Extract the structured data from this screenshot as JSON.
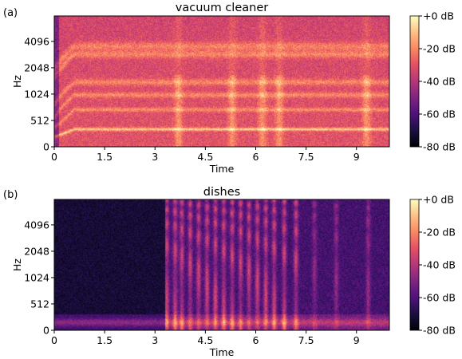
{
  "chart_data": [
    {
      "type": "heatmap",
      "panel_label": "(a)",
      "title": "vacuum cleaner",
      "xlabel": "Time",
      "ylabel": "Hz",
      "x_ticks": [
        "0",
        "1.5",
        "3",
        "4.5",
        "6",
        "7.5",
        "9"
      ],
      "x_tick_values": [
        0,
        1.5,
        3,
        4.5,
        6,
        7.5,
        9
      ],
      "xlim": [
        0,
        9.98
      ],
      "y_ticks": [
        "0",
        "512",
        "1024",
        "2048",
        "4096"
      ],
      "y_tick_values": [
        0,
        512,
        1024,
        2048,
        4096
      ],
      "y_scale": "symlog",
      "ylim": [
        0,
        8000
      ],
      "colorbar": {
        "ticks": [
          "+0 dB",
          "-20 dB",
          "-40 dB",
          "-60 dB",
          "-80 dB"
        ],
        "tick_values": [
          0,
          -20,
          -40,
          -60,
          -80
        ],
        "range": [
          -80,
          0
        ],
        "colormap": "magma"
      },
      "features": {
        "background_db": -30,
        "harmonic_bands_hz": [
          340,
          680,
          1000,
          1400,
          2900,
          3600
        ],
        "transient_bursts_s": [
          3.7,
          5.3,
          6.2,
          6.7,
          9.3
        ]
      }
    },
    {
      "type": "heatmap",
      "panel_label": "(b)",
      "title": "dishes",
      "xlabel": "Time",
      "ylabel": "Hz",
      "x_ticks": [
        "0",
        "1.5",
        "3",
        "4.5",
        "6",
        "7.5",
        "9"
      ],
      "x_tick_values": [
        0,
        1.5,
        3,
        4.5,
        6,
        7.5,
        9
      ],
      "xlim": [
        0,
        9.98
      ],
      "y_ticks": [
        "0",
        "512",
        "1024",
        "2048",
        "4096"
      ],
      "y_tick_values": [
        0,
        512,
        1024,
        2048,
        4096
      ],
      "y_scale": "symlog",
      "ylim": [
        0,
        8000
      ],
      "colorbar": {
        "ticks": [
          "+0 dB",
          "-20 dB",
          "-40 dB",
          "-60 dB",
          "-80 dB"
        ],
        "tick_values": [
          0,
          -20,
          -40,
          -60,
          -80
        ],
        "range": [
          -80,
          0
        ],
        "colormap": "magma"
      },
      "features": {
        "background_db": -72,
        "low_band_hz": 150,
        "activity_span_s": [
          3.3,
          9.98
        ],
        "strike_times_s": [
          3.35,
          3.6,
          3.8,
          4.05,
          4.3,
          4.55,
          4.8,
          5.05,
          5.3,
          5.55,
          5.8,
          6.05,
          6.3,
          6.55,
          6.85,
          7.2,
          7.75,
          8.4,
          9.35
        ]
      }
    }
  ],
  "colors": {
    "axis": "#000000",
    "background": "#ffffff"
  }
}
